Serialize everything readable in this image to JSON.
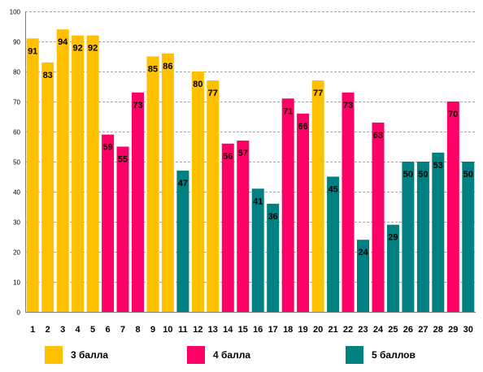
{
  "chart_data": {
    "type": "bar",
    "categories": [
      "1",
      "2",
      "3",
      "4",
      "5",
      "6",
      "7",
      "8",
      "9",
      "10",
      "11",
      "12",
      "13",
      "14",
      "15",
      "16",
      "17",
      "18",
      "19",
      "20",
      "21",
      "22",
      "23",
      "24",
      "25",
      "26",
      "27",
      "28",
      "29",
      "30"
    ],
    "values": [
      91,
      83,
      94,
      92,
      92,
      59,
      55,
      73,
      85,
      86,
      47,
      80,
      77,
      56,
      57,
      41,
      36,
      71,
      66,
      77,
      45,
      73,
      24,
      63,
      29,
      50,
      50,
      53,
      70,
      50
    ],
    "groups": [
      0,
      0,
      0,
      0,
      0,
      1,
      1,
      1,
      0,
      0,
      2,
      0,
      0,
      1,
      1,
      2,
      2,
      1,
      1,
      0,
      2,
      1,
      2,
      1,
      2,
      2,
      2,
      2,
      1,
      2
    ],
    "series": [
      {
        "name": "3 балла",
        "color": "#FFC000"
      },
      {
        "name": "4 балла",
        "color": "#FF0066"
      },
      {
        "name": "5 баллов",
        "color": "#008080"
      }
    ],
    "yticks": [
      "0",
      "10",
      "20",
      "30",
      "40",
      "50",
      "60",
      "70",
      "80",
      "90",
      "100"
    ],
    "ylim": [
      0,
      100
    ],
    "grid": true,
    "legend_position": "bottom",
    "title": "",
    "xlabel": "",
    "ylabel": ""
  }
}
